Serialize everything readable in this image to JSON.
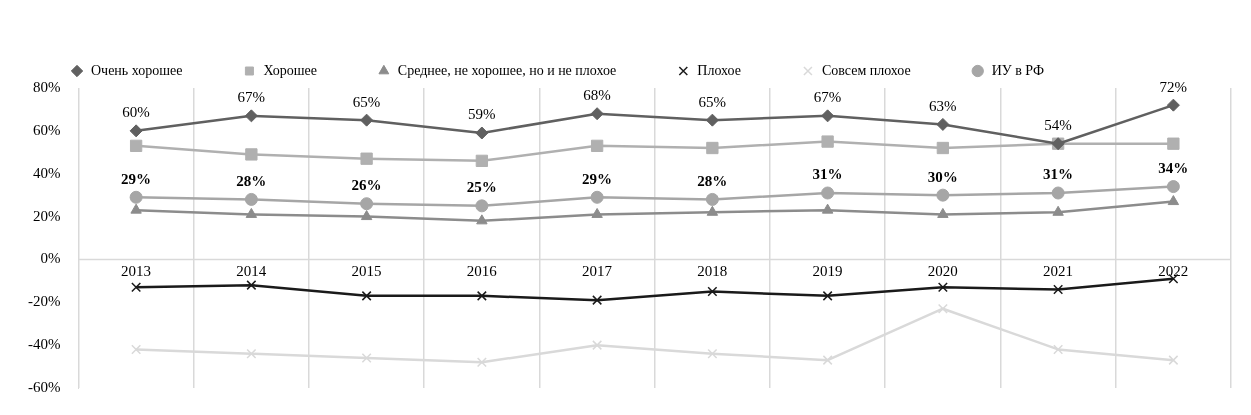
{
  "chart_data": {
    "type": "line",
    "categories": [
      "2013",
      "2014",
      "2015",
      "2016",
      "2017",
      "2018",
      "2019",
      "2020",
      "2021",
      "2022"
    ],
    "ylim": [
      -60,
      80
    ],
    "yticks": [
      {
        "value": -60,
        "label": "-60%"
      },
      {
        "value": -40,
        "label": "-40%"
      },
      {
        "value": -20,
        "label": "-20%"
      },
      {
        "value": 0,
        "label": "0%"
      },
      {
        "value": 20,
        "label": "20%"
      },
      {
        "value": 40,
        "label": "40%"
      },
      {
        "value": 60,
        "label": "60%"
      },
      {
        "value": 80,
        "label": "80%"
      }
    ],
    "grid": "x",
    "legend": "top",
    "series": [
      {
        "name": "Очень хорошее",
        "color": "#606060",
        "marker": "diamond",
        "values": [
          60,
          67,
          65,
          59,
          68,
          65,
          67,
          63,
          54,
          72
        ],
        "value_labels": [
          "60%",
          "67%",
          "65%",
          "59%",
          "68%",
          "65%",
          "67%",
          "63%",
          "54%",
          "72%"
        ]
      },
      {
        "name": "Хорошее",
        "color": "#b0b0b0",
        "marker": "square",
        "values": [
          53,
          49,
          47,
          46,
          53,
          52,
          55,
          52,
          54,
          54
        ]
      },
      {
        "name": "Среднее, не хорошее, но и не плохое",
        "color": "#8c8c8c",
        "marker": "triangle",
        "values": [
          23,
          21,
          20,
          18,
          21,
          22,
          23,
          21,
          22,
          27
        ]
      },
      {
        "name": "Плохое",
        "color": "#1a1a1a",
        "marker": "cross",
        "values": [
          -13,
          -12,
          -17,
          -17,
          -19,
          -15,
          -17,
          -13,
          -14,
          -9
        ]
      },
      {
        "name": "Совсем плохое",
        "color": "#d9d9d9",
        "marker": "cross",
        "values": [
          -42,
          -44,
          -46,
          -48,
          -40,
          -44,
          -47,
          -23,
          -42,
          -47
        ]
      },
      {
        "name": "ИУ в РФ",
        "color": "#a6a6a6",
        "marker": "circle",
        "values": [
          29,
          28,
          26,
          25,
          29,
          28,
          31,
          30,
          31,
          34
        ],
        "value_labels": [
          "29%",
          "28%",
          "26%",
          "25%",
          "29%",
          "28%",
          "31%",
          "30%",
          "31%",
          "34%"
        ]
      }
    ]
  }
}
